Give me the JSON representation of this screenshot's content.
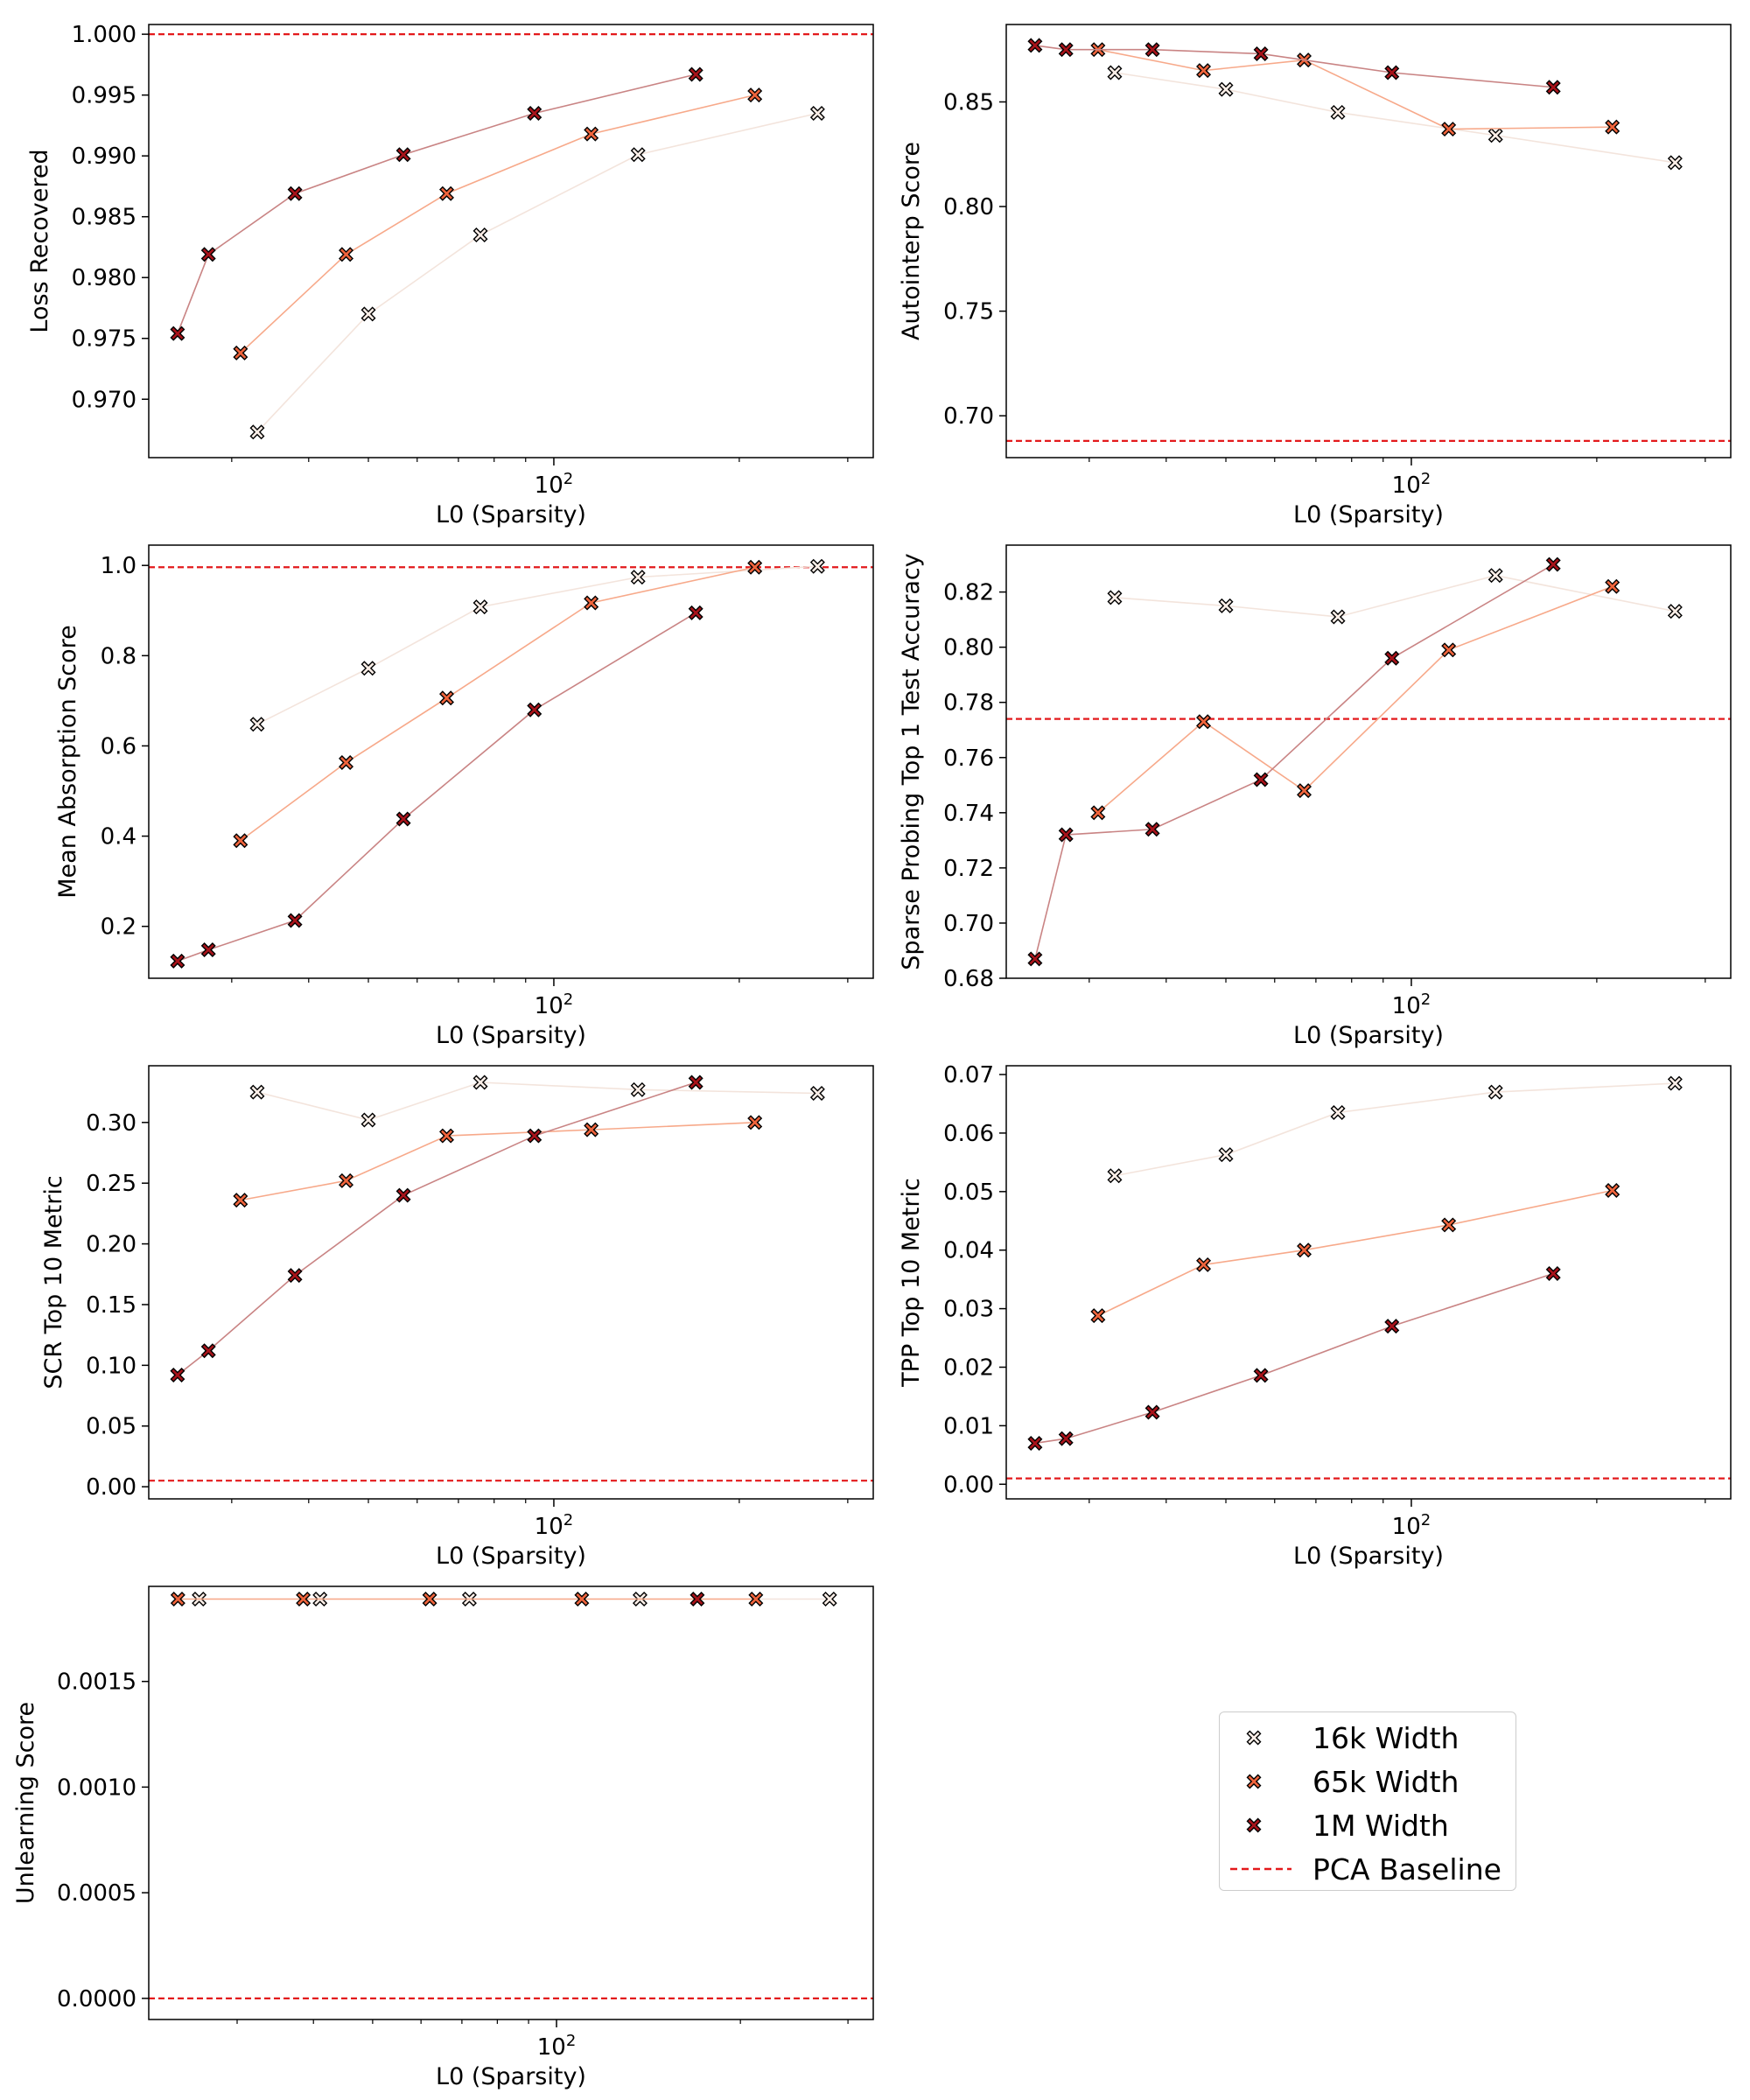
{
  "chart_data": {
    "type": "scatter",
    "xlabel": "L0 (Sparsity)",
    "xscale": "log",
    "xtick_label": "10^2",
    "series": [
      {
        "name": "16k Width",
        "color": "#fbeee7",
        "line_color": "#f3e4dc"
      },
      {
        "name": "65k Width",
        "color": "#f0643c",
        "line_color": "#f7a98a"
      },
      {
        "name": "1M Width",
        "color": "#a8131a",
        "line_color": "#c98484"
      }
    ],
    "baseline": {
      "name": "PCA Baseline",
      "color": "#e31a1c"
    },
    "panels": [
      {
        "ylabel": "Loss Recovered",
        "xlim": [
          22,
          330
        ],
        "ylim": [
          0.9652,
          1.0008
        ],
        "yticks": [
          0.97,
          0.975,
          0.98,
          0.985,
          0.99,
          0.995,
          1.0
        ],
        "ytick_labels": [
          "0.970",
          "0.975",
          "0.980",
          "0.985",
          "0.990",
          "0.995",
          "1.000"
        ],
        "baseline": 1.0,
        "series": [
          {
            "x": [
              33,
              50,
              76,
              137,
              268
            ],
            "y": [
              0.9673,
              0.977,
              0.9835,
              0.9901,
              0.9935
            ]
          },
          {
            "x": [
              31,
              46,
              67,
              115,
              212
            ],
            "y": [
              0.9738,
              0.9819,
              0.9869,
              0.9918,
              0.995
            ]
          },
          {
            "x": [
              24.5,
              27.5,
              38,
              57,
              93,
              170
            ],
            "y": [
              0.9754,
              0.9819,
              0.9869,
              0.9901,
              0.9935,
              0.9967
            ]
          }
        ]
      },
      {
        "ylabel": "Autointerp Score",
        "xlim": [
          22,
          330
        ],
        "ylim": [
          0.68,
          0.887
        ],
        "yticks": [
          0.7,
          0.75,
          0.8,
          0.85
        ],
        "ytick_labels": [
          "0.70",
          "0.75",
          "0.80",
          "0.85"
        ],
        "baseline": 0.688,
        "series": [
          {
            "x": [
              33,
              50,
              76,
              137,
              268
            ],
            "y": [
              0.864,
              0.856,
              0.845,
              0.834,
              0.821
            ]
          },
          {
            "x": [
              31,
              46,
              67,
              115,
              212
            ],
            "y": [
              0.875,
              0.865,
              0.87,
              0.837,
              0.838
            ]
          },
          {
            "x": [
              24.5,
              27.5,
              38,
              57,
              93,
              170
            ],
            "y": [
              0.877,
              0.875,
              0.875,
              0.873,
              0.864,
              0.857
            ]
          }
        ]
      },
      {
        "ylabel": "Mean Absorption Score",
        "xlim": [
          22,
          330
        ],
        "ylim": [
          0.085,
          1.045
        ],
        "yticks": [
          0.2,
          0.4,
          0.6,
          0.8,
          1.0
        ],
        "ytick_labels": [
          "0.2",
          "0.4",
          "0.6",
          "0.8",
          "1.0"
        ],
        "baseline": 0.996,
        "series": [
          {
            "x": [
              33,
              50,
              76,
              137,
              268
            ],
            "y": [
              0.648,
              0.772,
              0.908,
              0.974,
              0.998
            ]
          },
          {
            "x": [
              31,
              46,
              67,
              115,
              212
            ],
            "y": [
              0.39,
              0.563,
              0.706,
              0.917,
              0.996
            ]
          },
          {
            "x": [
              24.5,
              27.5,
              38,
              57,
              93,
              170
            ],
            "y": [
              0.123,
              0.148,
              0.213,
              0.438,
              0.68,
              0.895
            ]
          }
        ]
      },
      {
        "ylabel": "Sparse Probing Top 1 Test Accuracy",
        "xlim": [
          22,
          330
        ],
        "ylim": [
          0.68,
          0.837
        ],
        "yticks": [
          0.68,
          0.7,
          0.72,
          0.74,
          0.76,
          0.78,
          0.8,
          0.82
        ],
        "ytick_labels": [
          "0.68",
          "0.70",
          "0.72",
          "0.74",
          "0.76",
          "0.78",
          "0.80",
          "0.82"
        ],
        "baseline": 0.774,
        "series": [
          {
            "x": [
              33,
              50,
              76,
              137,
              268
            ],
            "y": [
              0.818,
              0.815,
              0.811,
              0.826,
              0.813
            ]
          },
          {
            "x": [
              31,
              46,
              67,
              115,
              212
            ],
            "y": [
              0.74,
              0.773,
              0.748,
              0.799,
              0.822
            ]
          },
          {
            "x": [
              24.5,
              27.5,
              38,
              57,
              93,
              170
            ],
            "y": [
              0.687,
              0.732,
              0.734,
              0.752,
              0.796,
              0.83
            ]
          }
        ]
      },
      {
        "ylabel": "SCR Top 10 Metric",
        "xlim": [
          22,
          330
        ],
        "ylim": [
          -0.01,
          0.3467
        ],
        "yticks": [
          0.0,
          0.05,
          0.1,
          0.15,
          0.2,
          0.25,
          0.3
        ],
        "ytick_labels": [
          "0.00",
          "0.05",
          "0.10",
          "0.15",
          "0.20",
          "0.25",
          "0.30"
        ],
        "baseline": 0.005,
        "series": [
          {
            "x": [
              33,
              50,
              76,
              137,
              268
            ],
            "y": [
              0.325,
              0.302,
              0.333,
              0.327,
              0.324
            ]
          },
          {
            "x": [
              31,
              46,
              67,
              115,
              212
            ],
            "y": [
              0.236,
              0.252,
              0.289,
              0.294,
              0.3
            ]
          },
          {
            "x": [
              24.5,
              27.5,
              38,
              57,
              93,
              170
            ],
            "y": [
              0.092,
              0.112,
              0.174,
              0.24,
              0.289,
              0.333
            ]
          }
        ]
      },
      {
        "ylabel": "TPP Top 10 Metric",
        "xlim": [
          22,
          330
        ],
        "ylim": [
          -0.0025,
          0.0715
        ],
        "yticks": [
          0.0,
          0.01,
          0.02,
          0.03,
          0.04,
          0.05,
          0.06,
          0.07
        ],
        "ytick_labels": [
          "0.00",
          "0.01",
          "0.02",
          "0.03",
          "0.04",
          "0.05",
          "0.06",
          "0.07"
        ],
        "baseline": 0.001,
        "series": [
          {
            "x": [
              33,
              50,
              76,
              137,
              268
            ],
            "y": [
              0.0527,
              0.0563,
              0.0635,
              0.067,
              0.0685
            ]
          },
          {
            "x": [
              31,
              46,
              67,
              115,
              212
            ],
            "y": [
              0.0288,
              0.0375,
              0.04,
              0.0443,
              0.0502
            ]
          },
          {
            "x": [
              24.5,
              27.5,
              38,
              57,
              93,
              170
            ],
            "y": [
              0.007,
              0.0078,
              0.0123,
              0.0186,
              0.027,
              0.036
            ]
          }
        ]
      },
      {
        "ylabel": "Unlearning Score",
        "xlim": [
          21.5,
          330
        ],
        "ylim": [
          -0.0001,
          0.00195
        ],
        "yticks": [
          0.0,
          0.0005,
          0.001,
          0.0015
        ],
        "ytick_labels": [
          "0.0000",
          "0.0005",
          "0.0010",
          "0.0015"
        ],
        "baseline": 0.0,
        "series": [
          {
            "x": [
              26,
              41,
              72,
              137,
              280
            ],
            "y": [
              0.00189,
              0.00189,
              0.00189,
              0.00189,
              0.00189
            ]
          },
          {
            "x": [
              24,
              38.5,
              62,
              110,
              212
            ],
            "y": [
              0.00189,
              0.00189,
              0.00189,
              0.00189,
              0.00189
            ]
          },
          {
            "x": [
              170
            ],
            "y": [
              0.00189
            ]
          }
        ]
      }
    ]
  }
}
